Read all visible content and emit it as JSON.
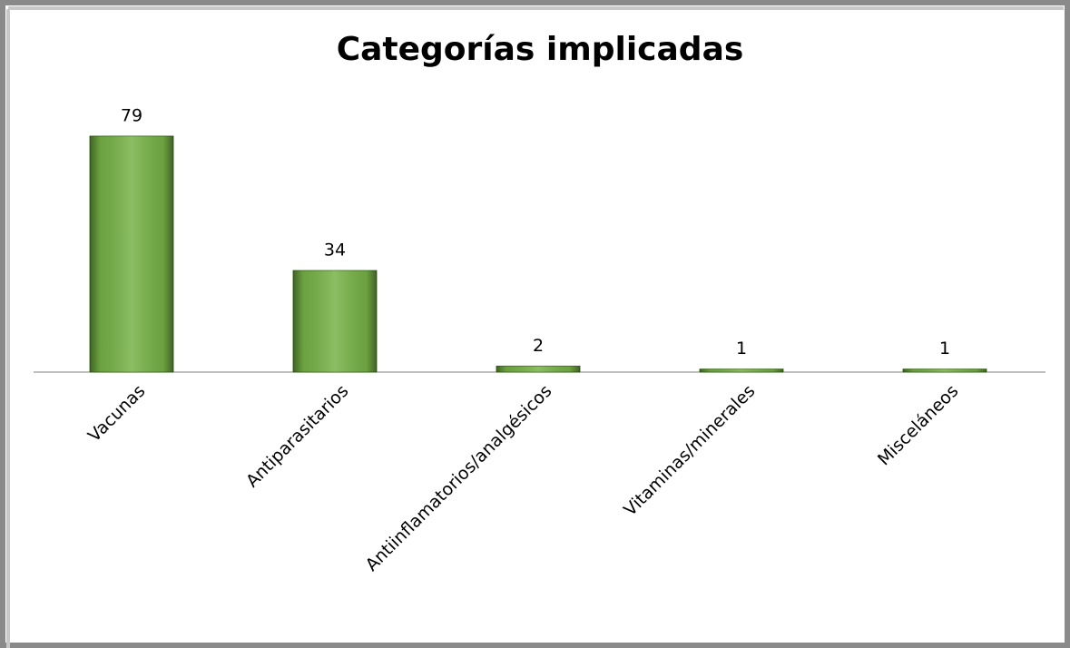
{
  "chart_data": {
    "type": "bar",
    "title": "Categorías implicadas",
    "categories": [
      "Vacunas",
      "Antiparasitarios",
      "Antiinflamatorios/analgésicos",
      "Vitaminas/minerales",
      "Misceláneos"
    ],
    "values": [
      79,
      34,
      2,
      1,
      1
    ],
    "color": "#77b347"
  }
}
